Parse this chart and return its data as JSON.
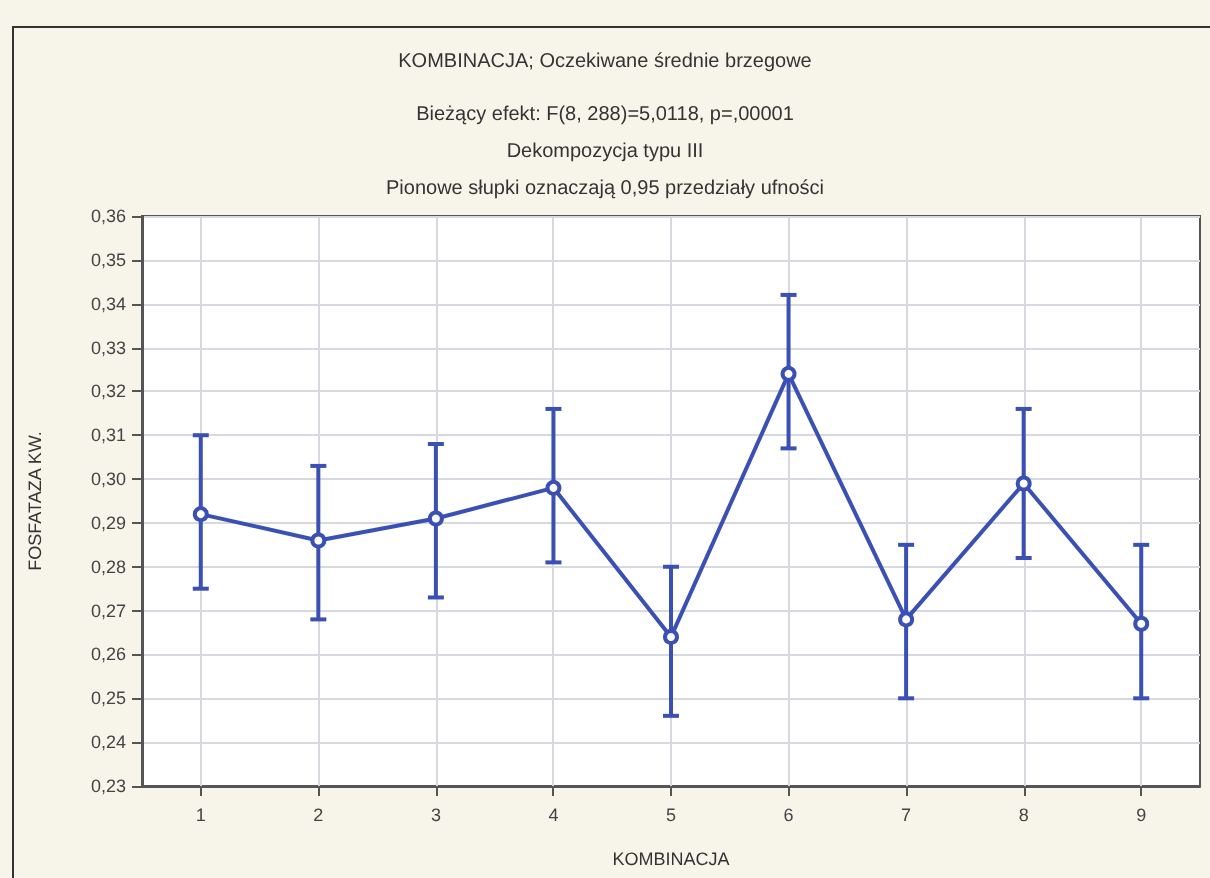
{
  "chart_data": {
    "type": "line",
    "title": "KOMBINACJA; Oczekiwane średnie brzegowe",
    "subtitle": "Bieżący efekt: F(8, 288)=5,0118, p=,00001\nDekompozycja typu III\nPionowe słupki oznaczają 0,95 przedziały ufności",
    "xlabel": "KOMBINACJA",
    "ylabel": "FOSFATAZA KW.",
    "categories": [
      "1",
      "2",
      "3",
      "4",
      "5",
      "6",
      "7",
      "8",
      "9"
    ],
    "values": [
      0.292,
      0.286,
      0.291,
      0.298,
      0.264,
      0.324,
      0.268,
      0.299,
      0.267
    ],
    "errors": [
      [
        0.275,
        0.31
      ],
      [
        0.268,
        0.303
      ],
      [
        0.273,
        0.308
      ],
      [
        0.281,
        0.316
      ],
      [
        0.246,
        0.28
      ],
      [
        0.307,
        0.342
      ],
      [
        0.25,
        0.285
      ],
      [
        0.282,
        0.316
      ],
      [
        0.25,
        0.285
      ]
    ],
    "color": "#3a50b4",
    "ylim": [
      0.23,
      0.36
    ],
    "yticks": [
      {
        "value": 0.23,
        "label": "0,23"
      },
      {
        "value": 0.24,
        "label": "0,24"
      },
      {
        "value": 0.25,
        "label": "0,25"
      },
      {
        "value": 0.26,
        "label": "0,26"
      },
      {
        "value": 0.27,
        "label": "0,27"
      },
      {
        "value": 0.28,
        "label": "0,28"
      },
      {
        "value": 0.29,
        "label": "0,29"
      },
      {
        "value": 0.3,
        "label": "0,30"
      },
      {
        "value": 0.31,
        "label": "0,31"
      },
      {
        "value": 0.32,
        "label": "0,32"
      },
      {
        "value": 0.33,
        "label": "0,33"
      },
      {
        "value": 0.34,
        "label": "0,34"
      },
      {
        "value": 0.35,
        "label": "0,35"
      },
      {
        "value": 0.36,
        "label": "0,36"
      }
    ],
    "grid": true,
    "marker": "circle",
    "line_style": "solid"
  }
}
